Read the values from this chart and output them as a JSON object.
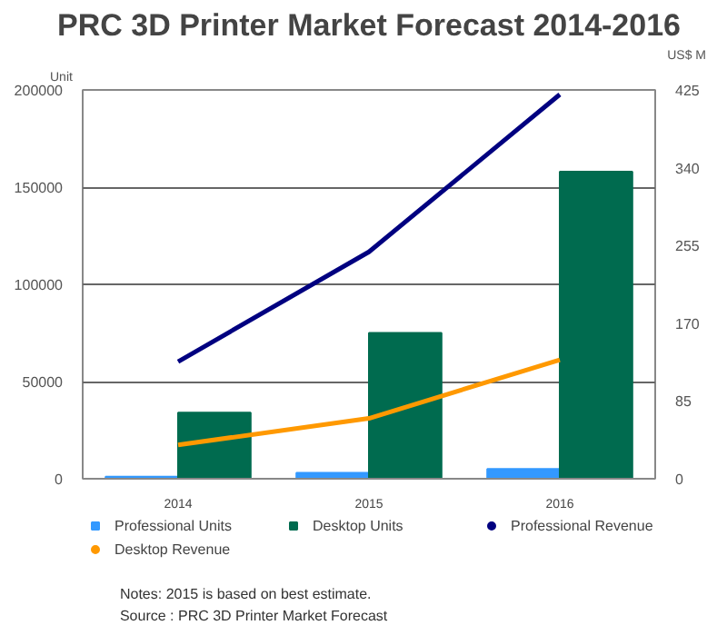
{
  "chart_data": {
    "type": "bar",
    "title": "PRC 3D Printer Market Forecast 2014-2016",
    "categories": [
      "2014",
      "2015",
      "2016"
    ],
    "ylabel": "Unit",
    "y2label": "US$ M",
    "ylim": [
      0,
      200000
    ],
    "yticks": [
      0,
      50000,
      100000,
      150000,
      200000
    ],
    "y2lim": [
      0,
      425
    ],
    "y2ticks": [
      0,
      85,
      170,
      255,
      340,
      425
    ],
    "series": [
      {
        "name": "Professional Units",
        "color": "#3399ff",
        "values": [
          1000,
          3000,
          5000
        ]
      },
      {
        "name": "Desktop Units",
        "color": "#006b4f",
        "values": [
          34000,
          75000,
          158000
        ]
      },
      {
        "name": "Professional Revenue",
        "type": "line",
        "axis": "y2",
        "color": "#000080",
        "values": [
          128,
          248,
          420
        ]
      },
      {
        "name": "Desktop Revenue",
        "type": "line",
        "axis": "y2",
        "color": "#ff9900",
        "values": [
          37,
          66,
          130
        ]
      }
    ],
    "grid": "y",
    "legend": "bottom",
    "annotations": [
      "Notes: 2015 is based on best estimate.",
      "Source : PRC 3D Printer Market Forecast"
    ]
  }
}
